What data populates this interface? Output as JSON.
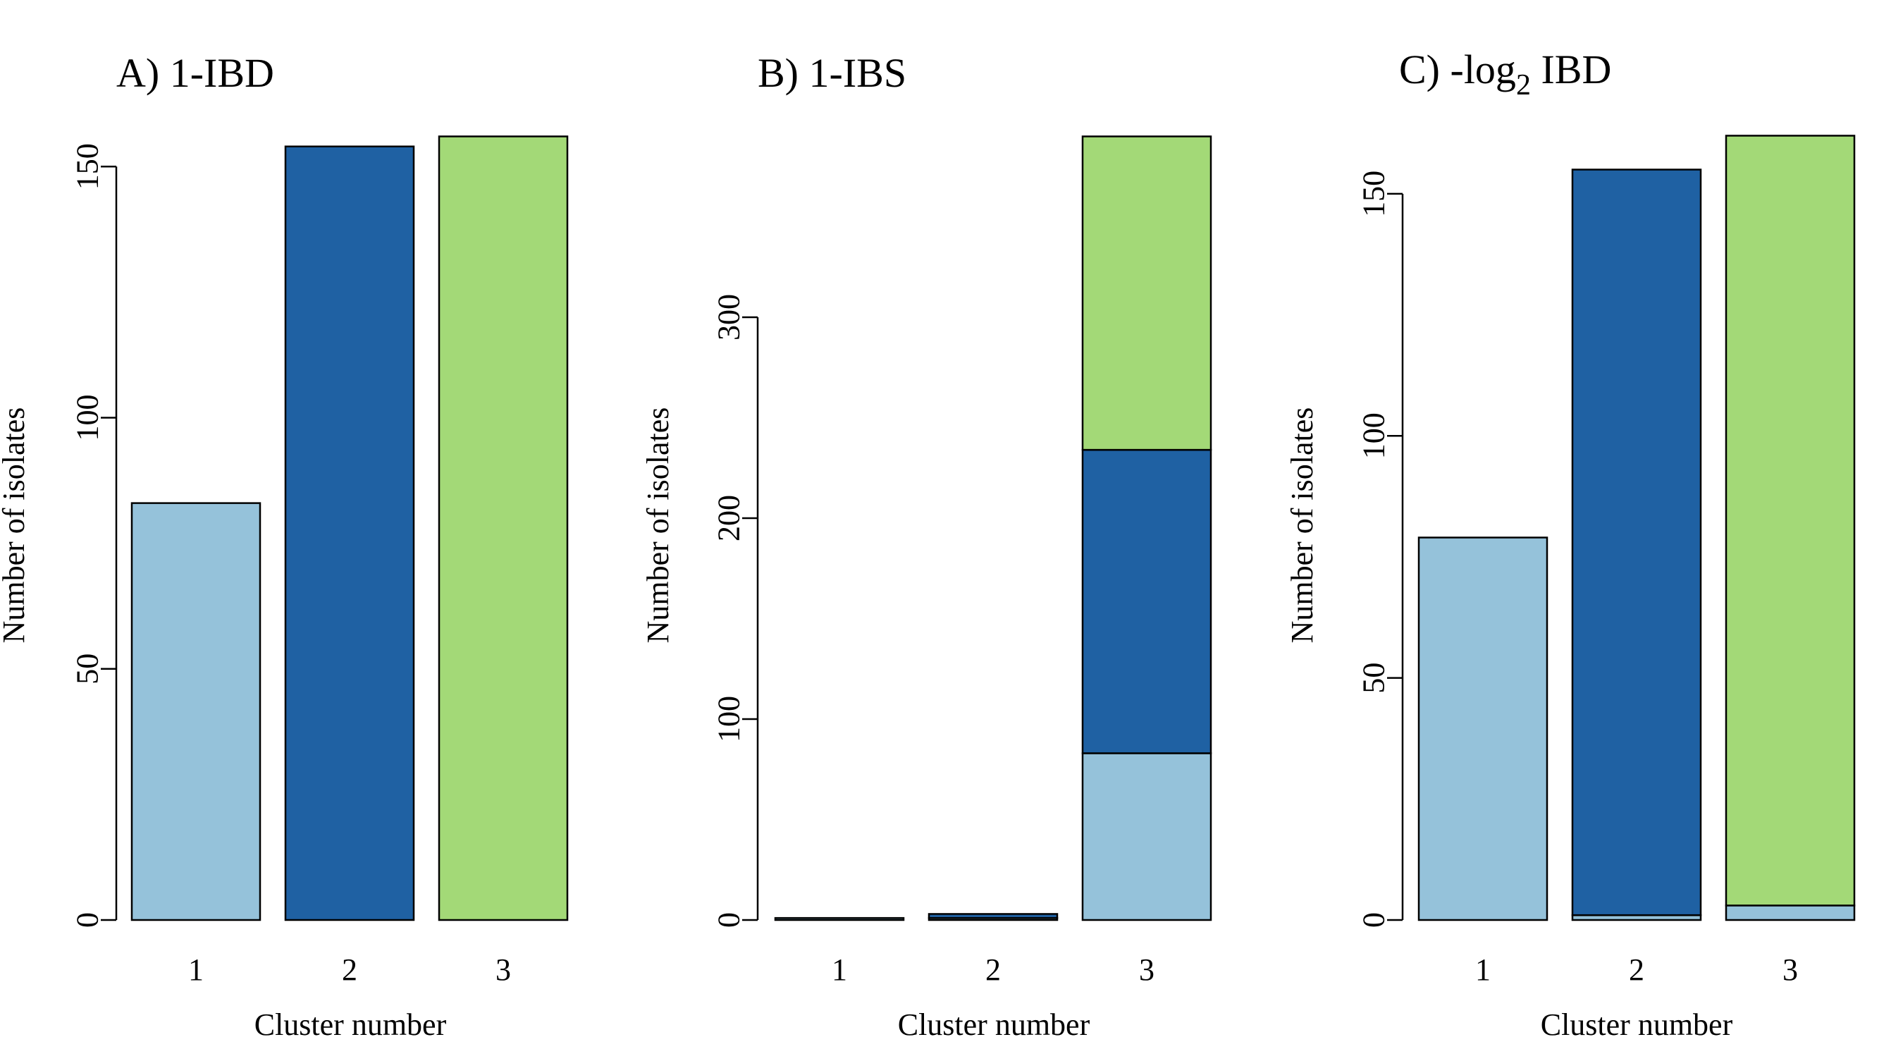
{
  "colors": {
    "cluster_1": "#95c2da",
    "cluster_2": "#1f61a3",
    "cluster_3": "#a3d977",
    "outline": "#000000"
  },
  "chart_data": [
    {
      "type": "bar",
      "stacked": true,
      "title": "A) 1-IBD",
      "xlabel": "Cluster number",
      "ylabel": "Number of isolates",
      "categories": [
        "1",
        "2",
        "3"
      ],
      "yticks": [
        0,
        50,
        100,
        150
      ],
      "ylim": [
        0,
        160
      ],
      "grid": false,
      "series": [
        {
          "color_key": "cluster_1",
          "values": [
            83,
            0,
            0
          ]
        },
        {
          "color_key": "cluster_2",
          "values": [
            0,
            154,
            0
          ]
        },
        {
          "color_key": "cluster_3",
          "values": [
            0,
            0,
            156
          ]
        }
      ]
    },
    {
      "type": "bar",
      "stacked": true,
      "title": "B) 1-IBS",
      "xlabel": "Cluster number",
      "ylabel": "Number of isolates",
      "categories": [
        "1",
        "2",
        "3"
      ],
      "yticks": [
        0,
        100,
        200,
        300
      ],
      "ylim": [
        0,
        400
      ],
      "grid": false,
      "series": [
        {
          "color_key": "cluster_1",
          "values": [
            1,
            1,
            83
          ]
        },
        {
          "color_key": "cluster_2",
          "values": [
            0,
            2,
            151
          ]
        },
        {
          "color_key": "cluster_3",
          "values": [
            0,
            0,
            156
          ]
        }
      ]
    },
    {
      "type": "bar",
      "stacked": true,
      "title_parts": {
        "prefix": "C) -log",
        "subscript": "2",
        "suffix": " IBD"
      },
      "xlabel": "Cluster number",
      "ylabel": "Number of isolates",
      "categories": [
        "1",
        "2",
        "3"
      ],
      "yticks": [
        0,
        50,
        100,
        150
      ],
      "ylim": [
        0,
        166
      ],
      "grid": false,
      "series": [
        {
          "color_key": "cluster_1",
          "values": [
            79,
            1,
            3
          ]
        },
        {
          "color_key": "cluster_2",
          "values": [
            0,
            154,
            0
          ]
        },
        {
          "color_key": "cluster_3",
          "values": [
            0,
            0,
            159
          ]
        }
      ]
    }
  ]
}
